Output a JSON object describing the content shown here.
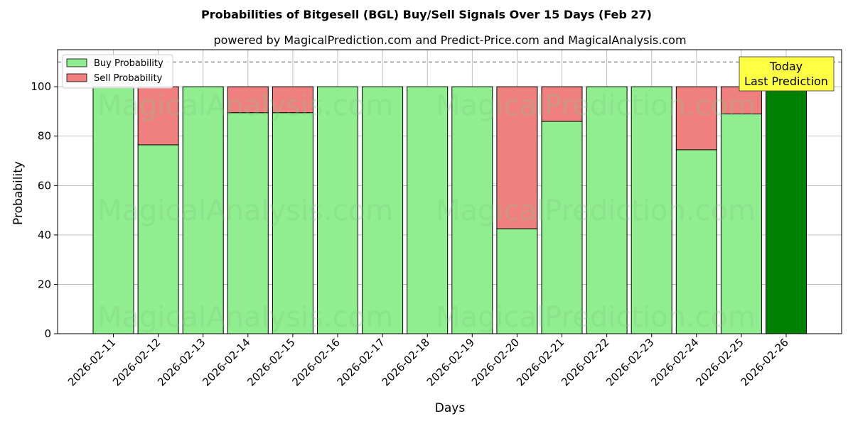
{
  "chart_data": {
    "type": "bar",
    "stacked": true,
    "title": "Probabilities of Bitgesell (BGL) Buy/Sell Signals Over 15 Days (Feb 27)",
    "subtitle": "powered by MagicalPrediction.com and Predict-Price.com and MagicalAnalysis.com",
    "xlabel": "Days",
    "ylabel": "Probability",
    "ylim": [
      0,
      115
    ],
    "yticks": [
      0,
      20,
      40,
      60,
      80,
      100
    ],
    "grid": true,
    "legend_position": "top-left",
    "reference_line": 110,
    "categories": [
      "2026-02-11",
      "2026-02-12",
      "2026-02-13",
      "2026-02-14",
      "2026-02-15",
      "2026-02-16",
      "2026-02-17",
      "2026-02-18",
      "2026-02-19",
      "2026-02-20",
      "2026-02-21",
      "2026-02-22",
      "2026-02-23",
      "2026-02-24",
      "2026-02-25",
      "2026-02-26"
    ],
    "series": [
      {
        "name": "Buy Probability",
        "color": "#90ee90",
        "values": [
          100,
          76.5,
          100,
          89.5,
          89.5,
          100,
          100,
          100,
          100,
          42.5,
          86,
          100,
          100,
          74.5,
          89,
          100
        ]
      },
      {
        "name": "Sell Probability",
        "color": "#f08080",
        "values": [
          0,
          23.5,
          0,
          10.5,
          10.5,
          0,
          0,
          0,
          0,
          57.5,
          14,
          0,
          0,
          25.5,
          11,
          0
        ]
      }
    ],
    "highlight": {
      "index": 15,
      "color": "#008000"
    },
    "annotation": {
      "line1": "Today",
      "line2": "Last Prediction",
      "color": "#ffff44"
    },
    "watermarks": [
      "MagicalAnalysis.com",
      "MagicalPrediction.com"
    ]
  }
}
